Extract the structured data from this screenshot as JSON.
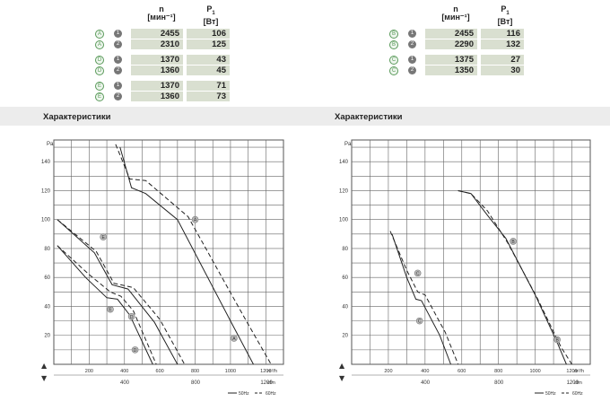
{
  "left_table": {
    "col_n": "n",
    "col_n_unit": "[мин⁻¹]",
    "col_p": "P",
    "col_p_sub": "1",
    "col_p_unit": "[Вт]",
    "rows": [
      {
        "letter": "A",
        "num": "1",
        "n": "2455",
        "p": "106"
      },
      {
        "letter": "A",
        "num": "2",
        "n": "2310",
        "p": "125"
      },
      {
        "letter": "D",
        "num": "1",
        "n": "1370",
        "p": "43"
      },
      {
        "letter": "D",
        "num": "2",
        "n": "1360",
        "p": "45"
      },
      {
        "letter": "E",
        "num": "1",
        "n": "1370",
        "p": "71"
      },
      {
        "letter": "E",
        "num": "2",
        "n": "1360",
        "p": "73"
      }
    ]
  },
  "right_table": {
    "col_n": "n",
    "col_n_unit": "[мин⁻¹]",
    "col_p": "P",
    "col_p_sub": "1",
    "col_p_unit": "[Вт]",
    "rows": [
      {
        "letter": "B",
        "num": "1",
        "n": "2455",
        "p": "116"
      },
      {
        "letter": "B",
        "num": "2",
        "n": "2290",
        "p": "132"
      },
      {
        "letter": "C",
        "num": "1",
        "n": "1375",
        "p": "27"
      },
      {
        "letter": "C",
        "num": "2",
        "n": "1350",
        "p": "30"
      }
    ]
  },
  "sections": {
    "left": "Характеристики",
    "right": "Характеристики"
  },
  "colors": {
    "cell_bg": "#d9dfd0",
    "marker_letter": "#5a9a5a",
    "marker_num": "#777777",
    "grid": "#555555",
    "curve": "#222222",
    "band": "#ececec"
  },
  "chart_data": [
    {
      "type": "line",
      "ylabel": "Pa",
      "xlabel": "m³/h",
      "x2label": "cfm",
      "ylim": [
        0,
        155
      ],
      "xlim": [
        0,
        1300
      ],
      "y_ticks": [
        "20",
        "40",
        "60",
        "80",
        "100",
        "120",
        "140"
      ],
      "x_ticks": [
        "200",
        "400",
        "600",
        "800",
        "1000",
        "1200"
      ],
      "x2_ticks": [
        "400",
        "800",
        "1200"
      ],
      "legend": [
        "50Hz",
        "60Hz"
      ],
      "series": [
        {
          "name": "A",
          "dash": false,
          "points": [
            [
              375,
              150
            ],
            [
              440,
              122
            ],
            [
              520,
              118
            ],
            [
              700,
              100
            ],
            [
              1000,
              30
            ],
            [
              1130,
              0
            ]
          ]
        },
        {
          "name": "A",
          "dash": true,
          "points": [
            [
              350,
              152
            ],
            [
              430,
              128
            ],
            [
              520,
              127
            ],
            [
              760,
              102
            ],
            [
              1080,
              32
            ],
            [
              1230,
              0
            ]
          ]
        },
        {
          "name": "D",
          "dash": false,
          "points": [
            [
              20,
              82
            ],
            [
              180,
              60
            ],
            [
              300,
              46
            ],
            [
              360,
              45
            ],
            [
              430,
              34
            ],
            [
              560,
              0
            ]
          ]
        },
        {
          "name": "D",
          "dash": true,
          "points": [
            [
              20,
              82
            ],
            [
              200,
              62
            ],
            [
              320,
              50
            ],
            [
              380,
              47
            ],
            [
              450,
              37
            ],
            [
              580,
              0
            ]
          ]
        },
        {
          "name": "E",
          "dash": false,
          "points": [
            [
              20,
              100
            ],
            [
              230,
              77
            ],
            [
              330,
              55
            ],
            [
              420,
              52
            ],
            [
              570,
              29
            ],
            [
              700,
              0
            ]
          ]
        },
        {
          "name": "E",
          "dash": true,
          "points": [
            [
              20,
              100
            ],
            [
              240,
              78
            ],
            [
              340,
              56
            ],
            [
              450,
              53
            ],
            [
              600,
              31
            ],
            [
              740,
              0
            ]
          ]
        }
      ],
      "labels": [
        {
          "text": "A",
          "x": 800,
          "y": 100
        },
        {
          "text": "A",
          "x": 1020,
          "y": 18
        },
        {
          "text": "D",
          "x": 440,
          "y": 33
        },
        {
          "text": "D",
          "x": 460,
          "y": 10
        },
        {
          "text": "E",
          "x": 320,
          "y": 38
        },
        {
          "text": "E",
          "x": 280,
          "y": 88
        }
      ]
    },
    {
      "type": "line",
      "ylabel": "Pa",
      "xlabel": "m³/h",
      "x2label": "cfm",
      "ylim": [
        0,
        155
      ],
      "xlim": [
        0,
        1300
      ],
      "y_ticks": [
        "20",
        "40",
        "60",
        "80",
        "100",
        "120",
        "140"
      ],
      "x_ticks": [
        "200",
        "400",
        "600",
        "800",
        "1000",
        "1200"
      ],
      "x2_ticks": [
        "400",
        "800",
        "1200"
      ],
      "legend": [
        "50Hz",
        "60Hz"
      ],
      "series": [
        {
          "name": "B",
          "dash": false,
          "points": [
            [
              580,
              120
            ],
            [
              650,
              118
            ],
            [
              740,
              103
            ],
            [
              840,
              87
            ],
            [
              1000,
              48
            ],
            [
              1120,
              15
            ],
            [
              1170,
              0
            ]
          ]
        },
        {
          "name": "B",
          "dash": true,
          "points": [
            [
              580,
              120
            ],
            [
              650,
              118
            ],
            [
              740,
              106
            ],
            [
              850,
              84
            ],
            [
              1010,
              46
            ],
            [
              1140,
              12
            ],
            [
              1200,
              0
            ]
          ]
        },
        {
          "name": "C",
          "dash": false,
          "points": [
            [
              220,
              90
            ],
            [
              300,
              60
            ],
            [
              350,
              45
            ],
            [
              380,
              44
            ],
            [
              480,
              20
            ],
            [
              540,
              0
            ]
          ]
        },
        {
          "name": "C",
          "dash": true,
          "points": [
            [
              210,
              92
            ],
            [
              300,
              65
            ],
            [
              360,
              50
            ],
            [
              400,
              48
            ],
            [
              510,
              22
            ],
            [
              580,
              0
            ]
          ]
        }
      ],
      "labels": [
        {
          "text": "B",
          "x": 880,
          "y": 85
        },
        {
          "text": "B",
          "x": 1120,
          "y": 17
        },
        {
          "text": "C",
          "x": 370,
          "y": 30
        },
        {
          "text": "C",
          "x": 360,
          "y": 63
        }
      ]
    }
  ]
}
